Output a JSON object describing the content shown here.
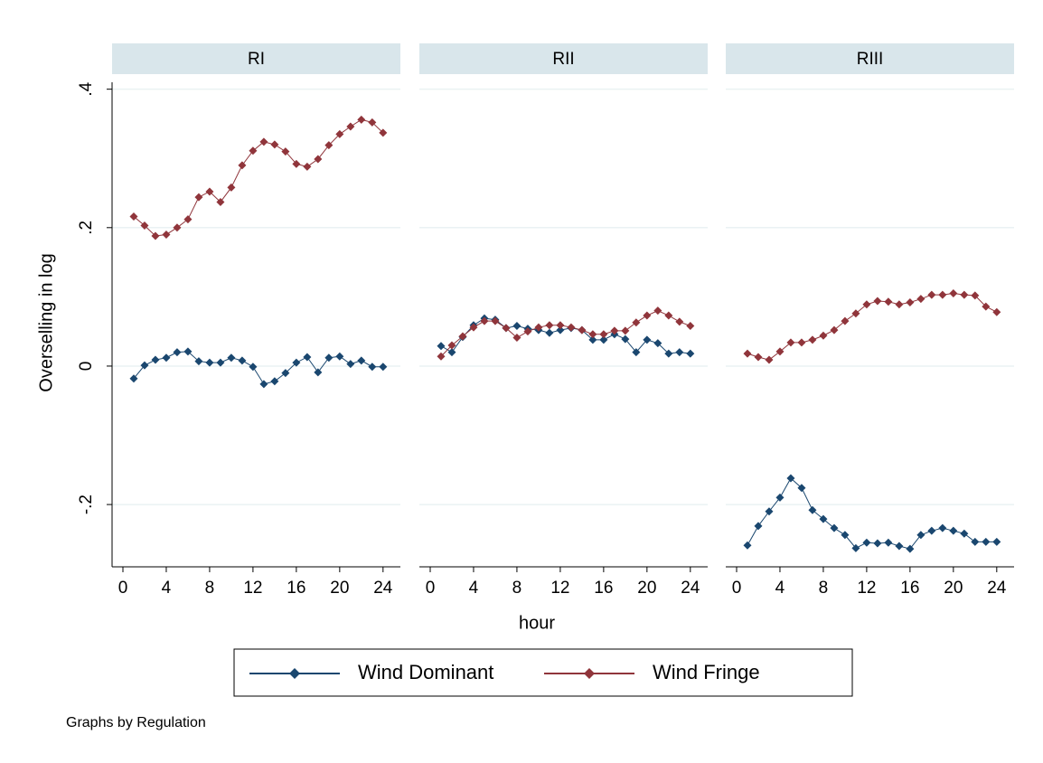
{
  "y_axis_title": "Overselling in log",
  "x_axis_title": "hour",
  "note": "Graphs by Regulation",
  "legend": "bottom",
  "chart_data": [
    {
      "type": "line",
      "title": "RI",
      "x": [
        1,
        2,
        3,
        4,
        5,
        6,
        7,
        8,
        9,
        10,
        11,
        12,
        13,
        14,
        15,
        16,
        17,
        18,
        19,
        20,
        21,
        22,
        23,
        24
      ],
      "xlim": [
        -1,
        25.6
      ],
      "xticks": [
        0,
        4,
        8,
        12,
        16,
        20,
        24
      ],
      "ylim": [
        -0.29,
        0.41
      ],
      "yticks": [
        {
          "value": -0.2,
          "label": "-.2"
        },
        0,
        {
          "value": 0.2,
          "label": ".2"
        },
        {
          "value": 0.4,
          "label": ".4"
        }
      ],
      "grid": true,
      "series": [
        {
          "name": "Wind Dominant",
          "color": "#1a476f",
          "values": [
            -0.018,
            0.001,
            0.009,
            0.012,
            0.02,
            0.021,
            0.007,
            0.005,
            0.005,
            0.012,
            0.008,
            -0.001,
            -0.026,
            -0.022,
            -0.01,
            0.005,
            0.013,
            -0.009,
            0.012,
            0.014,
            0.003,
            0.008,
            -0.001,
            -0.001
          ]
        },
        {
          "name": "Wind Fringe",
          "color": "#90353b",
          "values": [
            0.216,
            0.203,
            0.188,
            0.19,
            0.2,
            0.212,
            0.244,
            0.252,
            0.237,
            0.258,
            0.29,
            0.311,
            0.324,
            0.32,
            0.31,
            0.292,
            0.288,
            0.299,
            0.319,
            0.335,
            0.346,
            0.356,
            0.352,
            0.337
          ]
        }
      ]
    },
    {
      "type": "line",
      "title": "RII",
      "x": [
        1,
        2,
        3,
        4,
        5,
        6,
        7,
        8,
        9,
        10,
        11,
        12,
        13,
        14,
        15,
        16,
        17,
        18,
        19,
        20,
        21,
        22,
        23,
        24
      ],
      "xlim": [
        -1,
        25.6
      ],
      "xticks": [
        0,
        4,
        8,
        12,
        16,
        20,
        24
      ],
      "ylim": [
        -0.29,
        0.41
      ],
      "yticks": [
        {
          "value": -0.2,
          "label": "-.2"
        },
        0,
        {
          "value": 0.2,
          "label": ".2"
        },
        {
          "value": 0.4,
          "label": ".4"
        }
      ],
      "grid": true,
      "series": [
        {
          "name": "Wind Dominant",
          "color": "#1a476f",
          "values": [
            0.029,
            0.02,
            0.042,
            0.059,
            0.069,
            0.067,
            0.055,
            0.058,
            0.054,
            0.052,
            0.048,
            0.052,
            0.055,
            0.052,
            0.038,
            0.038,
            0.046,
            0.039,
            0.02,
            0.038,
            0.033,
            0.018,
            0.02,
            0.018
          ]
        },
        {
          "name": "Wind Fringe",
          "color": "#90353b",
          "values": [
            0.014,
            0.03,
            0.043,
            0.056,
            0.065,
            0.065,
            0.055,
            0.041,
            0.05,
            0.056,
            0.059,
            0.059,
            0.056,
            0.052,
            0.046,
            0.046,
            0.051,
            0.051,
            0.063,
            0.073,
            0.08,
            0.073,
            0.064,
            0.058
          ]
        }
      ]
    },
    {
      "type": "line",
      "title": "RIII",
      "x": [
        1,
        2,
        3,
        4,
        5,
        6,
        7,
        8,
        9,
        10,
        11,
        12,
        13,
        14,
        15,
        16,
        17,
        18,
        19,
        20,
        21,
        22,
        23,
        24
      ],
      "xlim": [
        -1,
        25.6
      ],
      "xticks": [
        0,
        4,
        8,
        12,
        16,
        20,
        24
      ],
      "ylim": [
        -0.29,
        0.41
      ],
      "yticks": [
        {
          "value": -0.2,
          "label": "-.2"
        },
        0,
        {
          "value": 0.2,
          "label": ".2"
        },
        {
          "value": 0.4,
          "label": ".4"
        }
      ],
      "grid": true,
      "series": [
        {
          "name": "Wind Dominant",
          "color": "#1a476f",
          "values": [
            -0.259,
            -0.231,
            -0.21,
            -0.19,
            -0.162,
            -0.176,
            -0.208,
            -0.221,
            -0.234,
            -0.244,
            -0.263,
            -0.255,
            -0.256,
            -0.255,
            -0.26,
            -0.264,
            -0.244,
            -0.238,
            -0.234,
            -0.238,
            -0.242,
            -0.254,
            -0.254,
            -0.254
          ]
        },
        {
          "name": "Wind Fringe",
          "color": "#90353b",
          "values": [
            0.018,
            0.013,
            0.009,
            0.021,
            0.034,
            0.034,
            0.038,
            0.044,
            0.052,
            0.065,
            0.076,
            0.089,
            0.094,
            0.093,
            0.089,
            0.092,
            0.097,
            0.103,
            0.103,
            0.105,
            0.103,
            0.102,
            0.086,
            0.078
          ]
        }
      ]
    }
  ]
}
